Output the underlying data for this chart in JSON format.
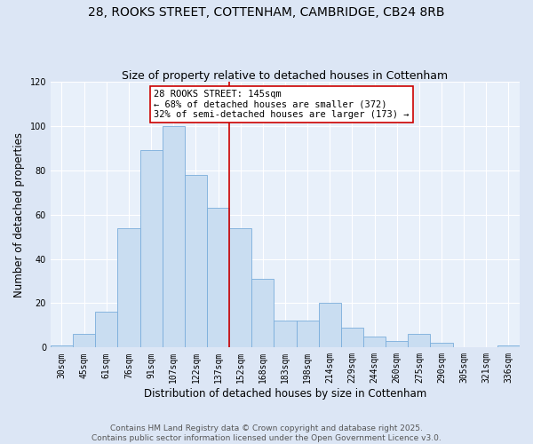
{
  "title1": "28, ROOKS STREET, COTTENHAM, CAMBRIDGE, CB24 8RB",
  "title2": "Size of property relative to detached houses in Cottenham",
  "xlabel": "Distribution of detached houses by size in Cottenham",
  "ylabel": "Number of detached properties",
  "bar_labels": [
    "30sqm",
    "45sqm",
    "61sqm",
    "76sqm",
    "91sqm",
    "107sqm",
    "122sqm",
    "137sqm",
    "152sqm",
    "168sqm",
    "183sqm",
    "198sqm",
    "214sqm",
    "229sqm",
    "244sqm",
    "260sqm",
    "275sqm",
    "290sqm",
    "305sqm",
    "321sqm",
    "336sqm"
  ],
  "bar_values": [
    1,
    6,
    16,
    54,
    89,
    100,
    78,
    63,
    54,
    31,
    12,
    12,
    20,
    9,
    5,
    3,
    6,
    2,
    0,
    0,
    1
  ],
  "bar_color": "#c9ddf1",
  "bar_edge_color": "#7aaddb",
  "vline_color": "#cc0000",
  "annotation_title": "28 ROOKS STREET: 145sqm",
  "annotation_line1": "← 68% of detached houses are smaller (372)",
  "annotation_line2": "32% of semi-detached houses are larger (173) →",
  "annotation_box_facecolor": "#ffffff",
  "annotation_box_edgecolor": "#cc0000",
  "ylim": [
    0,
    120
  ],
  "yticks": [
    0,
    20,
    40,
    60,
    80,
    100,
    120
  ],
  "footer1": "Contains HM Land Registry data © Crown copyright and database right 2025.",
  "footer2": "Contains public sector information licensed under the Open Government Licence v3.0.",
  "bg_color": "#dce6f5",
  "plot_bg_color": "#e8f0fa",
  "grid_color": "#ffffff",
  "title1_fontsize": 10,
  "title2_fontsize": 9,
  "axis_label_fontsize": 8.5,
  "tick_fontsize": 7,
  "annotation_fontsize": 7.5,
  "footer_fontsize": 6.5,
  "vline_x": 7.5
}
